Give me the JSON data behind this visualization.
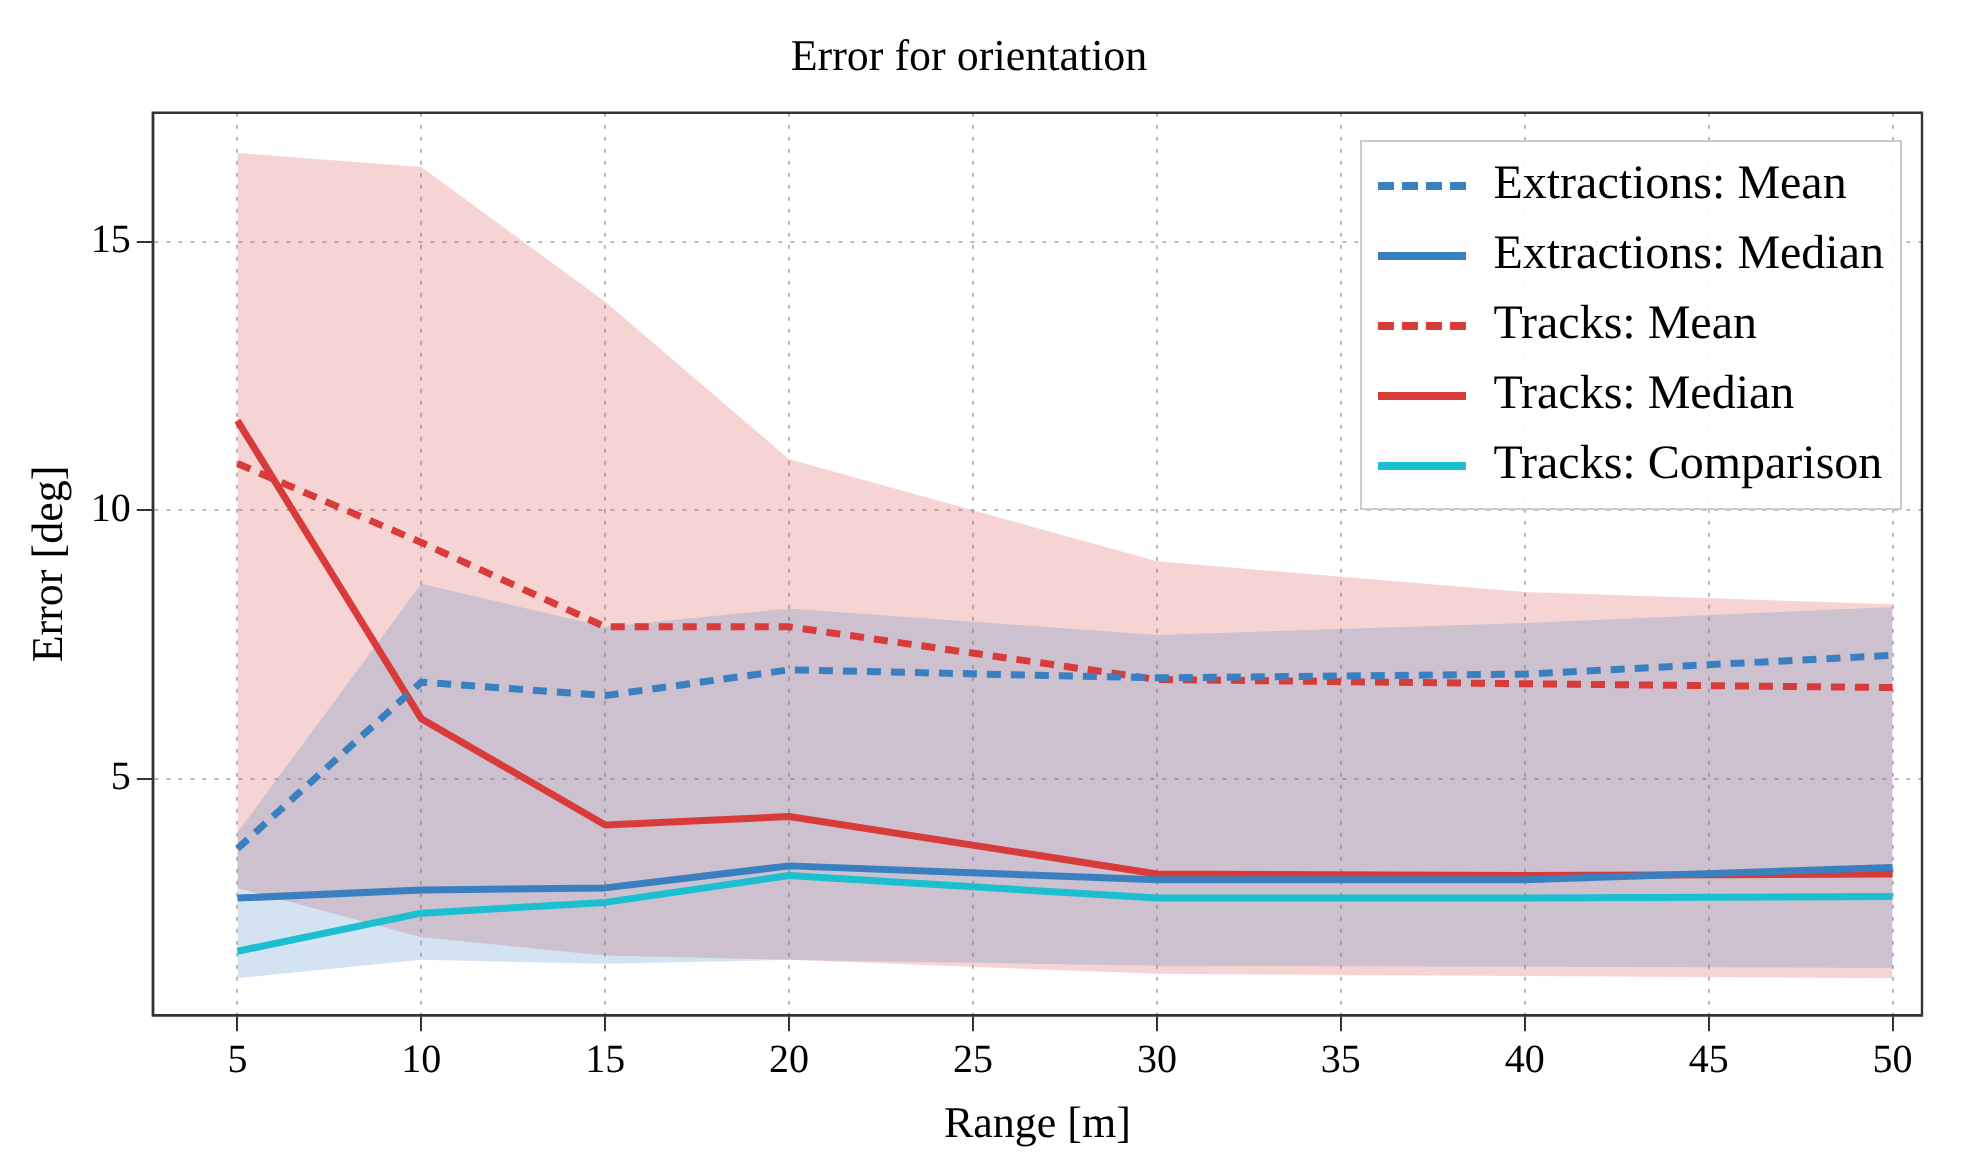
{
  "chart_data": {
    "type": "line",
    "title": "Error for orientation",
    "xlabel": "Range [m]",
    "ylabel": "Error [deg]",
    "x": [
      5,
      10,
      15,
      20,
      30,
      40,
      50
    ],
    "series": [
      {
        "name": "Extractions: Mean",
        "color": "#3a7fbf",
        "line_style": "dashed",
        "values": [
          3.7,
          6.8,
          6.55,
          7.03,
          6.88,
          6.95,
          7.3
        ],
        "lower": [
          1.29,
          1.63,
          1.56,
          1.63,
          1.52,
          1.5,
          1.48
        ],
        "upper": [
          4.0,
          8.63,
          7.83,
          8.17,
          7.68,
          7.9,
          8.2
        ]
      },
      {
        "name": "Extractions: Median",
        "color": "#3a7fbf",
        "line_style": "solid",
        "values": [
          2.78,
          2.93,
          2.97,
          3.38,
          3.12,
          3.12,
          3.35
        ]
      },
      {
        "name": "Tracks: Mean",
        "color": "#d93a3a",
        "line_style": "dashed",
        "values": [
          10.87,
          9.4,
          7.83,
          7.83,
          6.85,
          6.77,
          6.7
        ],
        "lower": [
          2.97,
          2.05,
          1.71,
          1.63,
          1.37,
          1.33,
          1.29
        ],
        "upper": [
          16.65,
          16.39,
          13.88,
          10.95,
          9.05,
          8.48,
          8.25
        ]
      },
      {
        "name": "Tracks: Median",
        "color": "#d93a3a",
        "line_style": "solid",
        "values": [
          11.67,
          6.12,
          4.14,
          4.3,
          3.23,
          3.2,
          3.23
        ]
      },
      {
        "name": "Tracks: Comparison",
        "color": "#1bbfd0",
        "line_style": "solid",
        "values": [
          1.79,
          2.5,
          2.7,
          3.2,
          2.78,
          2.78,
          2.81
        ]
      }
    ],
    "xlim": [
      2.7,
      50.8
    ],
    "ylim": [
      0.6,
      17.4
    ],
    "xticks": [
      5,
      10,
      15,
      20,
      25,
      30,
      35,
      40,
      45,
      50
    ],
    "yticks": [
      5,
      10,
      15
    ],
    "grid": true,
    "legend": "top right",
    "marker": "none"
  }
}
